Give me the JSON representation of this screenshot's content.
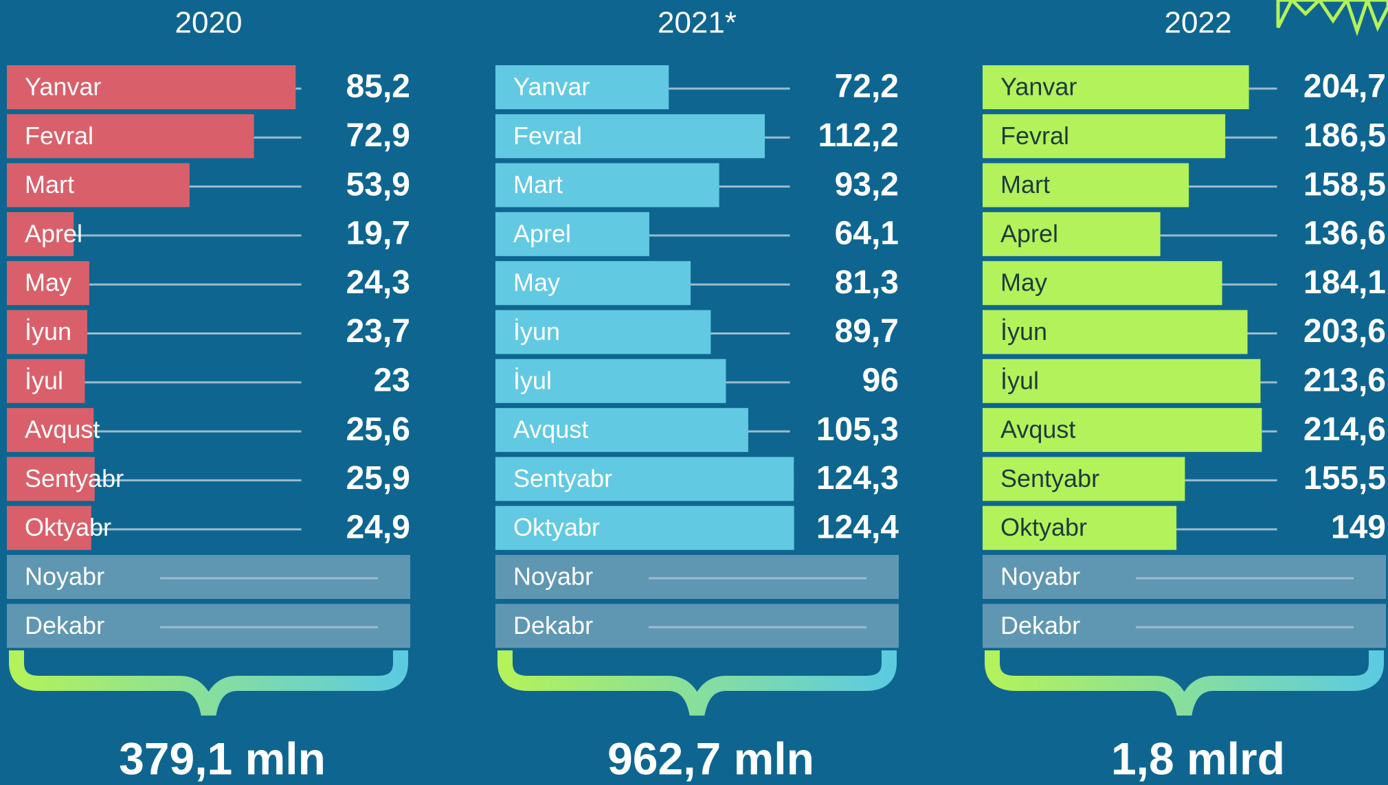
{
  "chart_data": [
    {
      "type": "bar",
      "title": "2020",
      "color": "#d9606a",
      "xlim": [
        0,
        119
      ],
      "categories": [
        "Yanvar",
        "Fevral",
        "Mart",
        "Aprel",
        "May",
        "İyun",
        "İyul",
        "Avqust",
        "Sentyabr",
        "Oktyabr",
        "Noyabr",
        "Dekabr"
      ],
      "values": [
        85.2,
        72.9,
        53.9,
        19.7,
        24.3,
        23.7,
        23,
        25.6,
        25.9,
        24.9,
        null,
        null
      ],
      "value_labels": [
        "85,2",
        "72,9",
        "53,9",
        "19,7",
        "24,3",
        "23,7",
        "23",
        "25,6",
        "25,9",
        "24,9",
        null,
        null
      ],
      "total": "379,1 mln"
    },
    {
      "type": "bar",
      "title": "2021*",
      "color": "#62c9e2",
      "xlim": [
        0,
        168
      ],
      "categories": [
        "Yanvar",
        "Fevral",
        "Mart",
        "Aprel",
        "May",
        "İyun",
        "İyul",
        "Avqust",
        "Sentyabr",
        "Oktyabr",
        "Noyabr",
        "Dekabr"
      ],
      "values": [
        72.2,
        112.2,
        93.2,
        64.1,
        81.3,
        89.7,
        96,
        105.3,
        124.3,
        124.4,
        null,
        null
      ],
      "value_labels": [
        "72,2",
        "112,2",
        "93,2",
        "64,1",
        "81,3",
        "89,7",
        "96",
        "105,3",
        "124,3",
        "124,4",
        null,
        null
      ],
      "total": "962,7 mln"
    },
    {
      "type": "bar",
      "title": "2022",
      "color": "#b3f25a",
      "xlim": [
        0,
        310
      ],
      "categories": [
        "Yanvar",
        "Fevral",
        "Mart",
        "Aprel",
        "May",
        "İyun",
        "İyul",
        "Avqust",
        "Sentyabr",
        "Oktyabr",
        "Noyabr",
        "Dekabr"
      ],
      "values": [
        204.7,
        186.5,
        158.5,
        136.6,
        184.1,
        203.6,
        213.6,
        214.6,
        155.5,
        149,
        null,
        null
      ],
      "value_labels": [
        "204,7",
        "186,5",
        "158,5",
        "136,6",
        "184,1",
        "203,6",
        "213,6",
        "214,6",
        "155,5",
        "149",
        null,
        null
      ],
      "total": "1,8 mlrd"
    }
  ]
}
